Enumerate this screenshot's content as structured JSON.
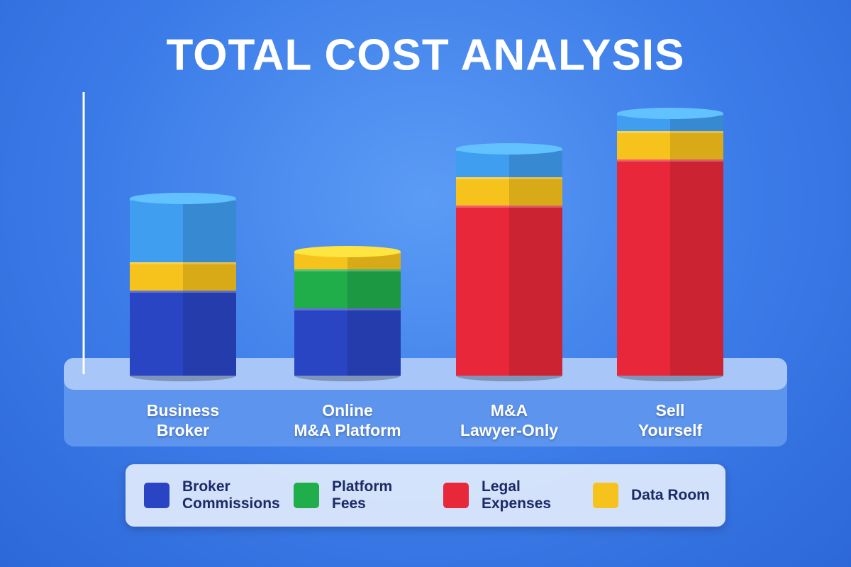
{
  "chart_data": {
    "type": "stacked-bar",
    "title": "TOTAL COST ANALYSIS",
    "categories": [
      [
        "Business",
        "Broker"
      ],
      [
        "Online",
        "M&A Platform"
      ],
      [
        "M&A",
        "Lawyer-Only"
      ],
      [
        "Sell",
        "Yourself"
      ]
    ],
    "series": [
      {
        "name": "Broker Commissions",
        "color": "#2a45c4",
        "values": [
          120,
          95,
          0,
          0
        ]
      },
      {
        "name": "Platform Fees",
        "color": "#1fae4a",
        "values": [
          0,
          55,
          0,
          0
        ]
      },
      {
        "name": "Legal Expenses",
        "color": "#e8283a",
        "values": [
          0,
          0,
          240,
          305
        ]
      },
      {
        "name": "Data Room",
        "color": "#f6c21c",
        "values": [
          40,
          25,
          40,
          40
        ]
      },
      {
        "color": "#3f9ef0",
        "values": [
          90,
          0,
          40,
          25
        ]
      }
    ],
    "ylim": [
      0,
      400
    ]
  }
}
